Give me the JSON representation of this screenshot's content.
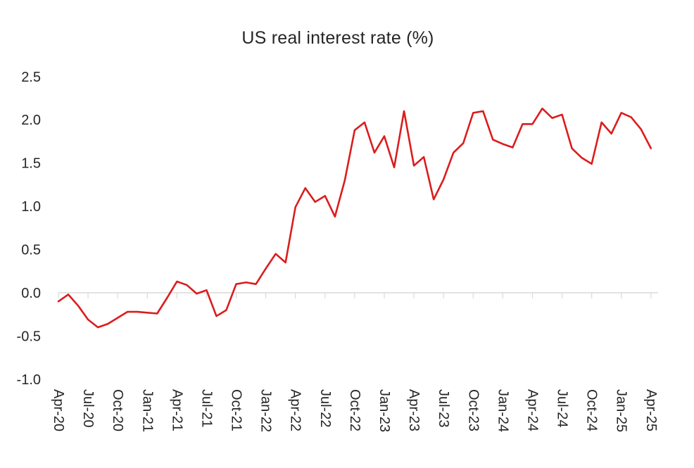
{
  "title": "US real interest rate (%)",
  "chart_data": {
    "type": "line",
    "title": "US real interest rate (%)",
    "xlabel": "",
    "ylabel": "",
    "ylim": [
      -1.0,
      2.5
    ],
    "grid": "zero-line-only",
    "legend_position": "none",
    "x": [
      "Apr-20",
      "May-20",
      "Jun-20",
      "Jul-20",
      "Aug-20",
      "Sep-20",
      "Oct-20",
      "Nov-20",
      "Dec-20",
      "Jan-21",
      "Feb-21",
      "Mar-21",
      "Apr-21",
      "May-21",
      "Jun-21",
      "Jul-21",
      "Aug-21",
      "Sep-21",
      "Oct-21",
      "Nov-21",
      "Dec-21",
      "Jan-22",
      "Feb-22",
      "Mar-22",
      "Apr-22",
      "May-22",
      "Jun-22",
      "Jul-22",
      "Aug-22",
      "Sep-22",
      "Oct-22",
      "Nov-22",
      "Dec-22",
      "Jan-23",
      "Feb-23",
      "Mar-23",
      "Apr-23",
      "May-23",
      "Jun-23",
      "Jul-23",
      "Aug-23",
      "Sep-23",
      "Oct-23",
      "Nov-23",
      "Dec-23",
      "Jan-24",
      "Feb-24",
      "Mar-24",
      "Apr-24",
      "May-24",
      "Jun-24",
      "Jul-24",
      "Aug-24",
      "Sep-24",
      "Oct-24",
      "Nov-24",
      "Dec-24",
      "Jan-25",
      "Feb-25",
      "Mar-25",
      "Apr-25"
    ],
    "series": [
      {
        "name": "US real interest rate (%)",
        "values": [
          -0.1,
          -0.02,
          -0.15,
          -0.31,
          -0.4,
          -0.36,
          -0.29,
          -0.22,
          -0.22,
          -0.23,
          -0.24,
          -0.06,
          0.13,
          0.09,
          -0.01,
          0.03,
          -0.27,
          -0.2,
          0.1,
          0.12,
          0.1,
          0.28,
          0.45,
          0.35,
          0.99,
          1.21,
          1.05,
          1.12,
          0.88,
          1.3,
          1.88,
          1.97,
          1.62,
          1.81,
          1.45,
          2.1,
          1.47,
          1.57,
          1.08,
          1.31,
          1.62,
          1.73,
          2.08,
          2.1,
          1.77,
          1.72,
          1.68,
          1.95,
          1.95,
          2.13,
          2.02,
          2.06,
          1.67,
          1.56,
          1.49,
          1.97,
          1.84,
          2.08,
          2.03,
          1.89,
          1.67
        ]
      }
    ],
    "x_tick_labels": [
      "Apr-20",
      "Jul-20",
      "Oct-20",
      "Jan-21",
      "Apr-21",
      "Jul-21",
      "Oct-21",
      "Jan-22",
      "Apr-22",
      "Jul-22",
      "Oct-22",
      "Jan-23",
      "Apr-23",
      "Jul-23",
      "Oct-23",
      "Jan-24",
      "Apr-24",
      "Jul-24",
      "Oct-24",
      "Jan-25",
      "Apr-25"
    ],
    "x_tick_every": 3,
    "y_ticks": [
      2.5,
      2.0,
      1.5,
      1.0,
      0.5,
      0.0,
      -0.5,
      -1.0
    ],
    "y_tick_labels": [
      "2.5",
      "2.0",
      "1.5",
      "1.0",
      "0.5",
      "0.0",
      "-0.5",
      "-1.0"
    ],
    "colors": {
      "line": "#dc1c1c",
      "gridline": "#d9d9d9",
      "tick": "#d9d9d9",
      "axis_text": "#262626",
      "title_text": "#262626",
      "background": "#ffffff"
    }
  }
}
